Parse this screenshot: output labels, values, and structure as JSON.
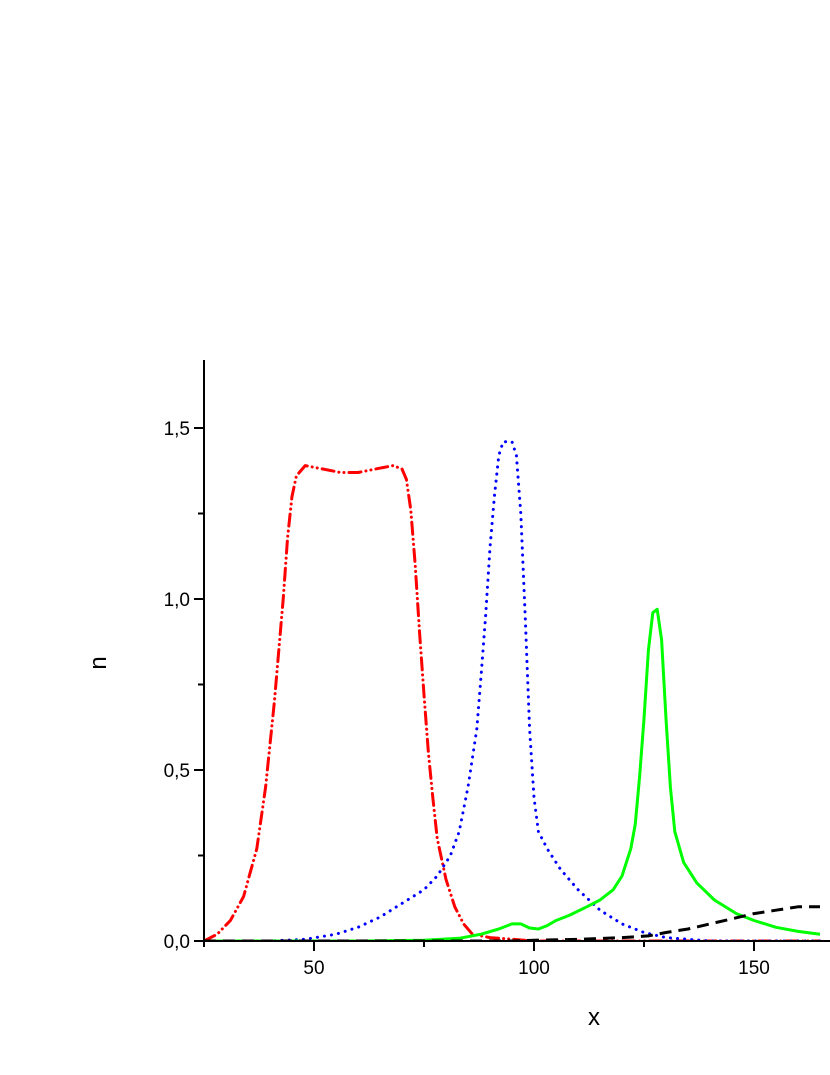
{
  "chart_data": {
    "type": "line",
    "title": "",
    "xlabel": "x",
    "ylabel": "n",
    "xlim": [
      25,
      165
    ],
    "ylim": [
      0,
      1.7
    ],
    "grid": false,
    "legend": "none",
    "x_ticks": [
      {
        "value": 50,
        "label": "50"
      },
      {
        "value": 100,
        "label": "100"
      },
      {
        "value": 150,
        "label": "150"
      }
    ],
    "x_minor_ticks": [
      25,
      75,
      125
    ],
    "y_ticks": [
      {
        "value": 0.0,
        "label": "0,0"
      },
      {
        "value": 0.5,
        "label": "0,5"
      },
      {
        "value": 1.0,
        "label": "1,0"
      },
      {
        "value": 1.5,
        "label": "1,5"
      }
    ],
    "y_minor_ticks": [
      0.25,
      0.75,
      1.25
    ],
    "series": [
      {
        "color": "#ff0000",
        "dash": "dash-dot-dot",
        "points": [
          [
            25,
            0
          ],
          [
            28,
            0.02
          ],
          [
            31,
            0.06
          ],
          [
            34,
            0.13
          ],
          [
            37,
            0.27
          ],
          [
            39,
            0.45
          ],
          [
            41,
            0.7
          ],
          [
            42,
            0.85
          ],
          [
            43,
            1.0
          ],
          [
            44,
            1.18
          ],
          [
            45,
            1.3
          ],
          [
            46,
            1.36
          ],
          [
            48,
            1.39
          ],
          [
            52,
            1.38
          ],
          [
            56,
            1.37
          ],
          [
            60,
            1.37
          ],
          [
            64,
            1.38
          ],
          [
            68,
            1.39
          ],
          [
            70,
            1.38
          ],
          [
            71,
            1.35
          ],
          [
            72,
            1.26
          ],
          [
            73,
            1.1
          ],
          [
            74,
            0.9
          ],
          [
            75,
            0.72
          ],
          [
            76,
            0.55
          ],
          [
            77,
            0.42
          ],
          [
            78,
            0.3
          ],
          [
            80,
            0.18
          ],
          [
            82,
            0.1
          ],
          [
            84,
            0.05
          ],
          [
            86,
            0.02
          ],
          [
            90,
            0.01
          ],
          [
            100,
            0
          ],
          [
            120,
            0
          ],
          [
            165,
            0
          ]
        ]
      },
      {
        "color": "#0000ff",
        "dash": "dot",
        "points": [
          [
            25,
            0
          ],
          [
            40,
            0
          ],
          [
            48,
            0.005
          ],
          [
            55,
            0.02
          ],
          [
            60,
            0.04
          ],
          [
            65,
            0.07
          ],
          [
            70,
            0.11
          ],
          [
            75,
            0.15
          ],
          [
            78,
            0.19
          ],
          [
            81,
            0.25
          ],
          [
            83,
            0.32
          ],
          [
            85,
            0.45
          ],
          [
            87,
            0.62
          ],
          [
            88,
            0.78
          ],
          [
            89,
            0.95
          ],
          [
            90,
            1.15
          ],
          [
            91,
            1.3
          ],
          [
            92,
            1.42
          ],
          [
            93,
            1.46
          ],
          [
            95,
            1.46
          ],
          [
            96,
            1.42
          ],
          [
            97,
            1.25
          ],
          [
            98,
            0.95
          ],
          [
            99,
            0.62
          ],
          [
            100,
            0.42
          ],
          [
            101,
            0.32
          ],
          [
            103,
            0.27
          ],
          [
            106,
            0.21
          ],
          [
            110,
            0.15
          ],
          [
            115,
            0.09
          ],
          [
            120,
            0.05
          ],
          [
            125,
            0.025
          ],
          [
            130,
            0.01
          ],
          [
            140,
            0
          ],
          [
            165,
            0
          ]
        ]
      },
      {
        "color": "#00ff00",
        "dash": "solid",
        "points": [
          [
            25,
            0
          ],
          [
            60,
            0
          ],
          [
            75,
            0.002
          ],
          [
            83,
            0.008
          ],
          [
            88,
            0.02
          ],
          [
            92,
            0.035
          ],
          [
            95,
            0.05
          ],
          [
            97,
            0.05
          ],
          [
            99,
            0.038
          ],
          [
            101,
            0.035
          ],
          [
            103,
            0.045
          ],
          [
            105,
            0.06
          ],
          [
            108,
            0.075
          ],
          [
            112,
            0.1
          ],
          [
            115,
            0.12
          ],
          [
            118,
            0.15
          ],
          [
            120,
            0.19
          ],
          [
            122,
            0.27
          ],
          [
            123,
            0.34
          ],
          [
            124,
            0.48
          ],
          [
            125,
            0.65
          ],
          [
            126,
            0.85
          ],
          [
            127,
            0.96
          ],
          [
            128,
            0.97
          ],
          [
            129,
            0.88
          ],
          [
            130,
            0.65
          ],
          [
            131,
            0.45
          ],
          [
            132,
            0.32
          ],
          [
            134,
            0.23
          ],
          [
            137,
            0.17
          ],
          [
            141,
            0.12
          ],
          [
            146,
            0.08
          ],
          [
            150,
            0.06
          ],
          [
            155,
            0.04
          ],
          [
            160,
            0.028
          ],
          [
            165,
            0.02
          ]
        ]
      },
      {
        "color": "#000000",
        "dash": "dash",
        "points": [
          [
            25,
            0
          ],
          [
            60,
            0
          ],
          [
            80,
            0
          ],
          [
            95,
            0
          ],
          [
            100,
            0.002
          ],
          [
            110,
            0.005
          ],
          [
            120,
            0.01
          ],
          [
            126,
            0.015
          ],
          [
            130,
            0.025
          ],
          [
            135,
            0.035
          ],
          [
            140,
            0.05
          ],
          [
            145,
            0.065
          ],
          [
            150,
            0.08
          ],
          [
            155,
            0.09
          ],
          [
            160,
            0.1
          ],
          [
            165,
            0.1
          ]
        ]
      }
    ]
  }
}
